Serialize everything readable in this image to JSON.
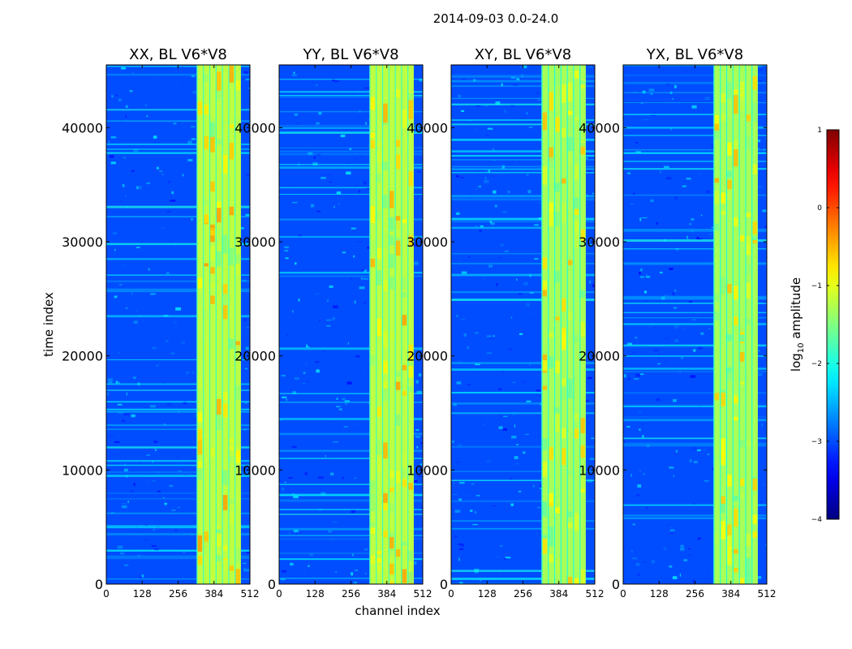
{
  "figure_title": "2014-09-03 0.0-24.0",
  "chart_data": {
    "type": "heatmap",
    "title": "2014-09-03 0.0-24.0",
    "xlabel": "channel index",
    "ylabel": "time index",
    "xlim": [
      0,
      512
    ],
    "ylim": [
      0,
      45500
    ],
    "xticks": [
      0,
      128,
      256,
      384,
      512
    ],
    "yticks": [
      0,
      10000,
      20000,
      30000,
      40000
    ],
    "xtick_labels": [
      "0",
      "128",
      "256",
      "384",
      "512"
    ],
    "ytick_labels": [
      "0",
      "10000",
      "20000",
      "30000",
      "40000"
    ],
    "panels": [
      {
        "title": "XX, BL V6*V8",
        "band_channels": [
          322,
          480
        ],
        "band_level": -1.2
      },
      {
        "title": "YY, BL V6*V8",
        "band_channels": [
          322,
          480
        ],
        "band_level": -1.2
      },
      {
        "title": "XY, BL V6*V8",
        "band_channels": [
          322,
          480
        ],
        "band_level": -1.3
      },
      {
        "title": "YX, BL V6*V8",
        "band_channels": [
          322,
          480
        ],
        "band_level": -1.3
      }
    ],
    "background_level": -3.0,
    "colorbar": {
      "label_prefix": "log",
      "label_sub": "10",
      "label_suffix": " amplitude",
      "range": [
        -4,
        1
      ],
      "ticks": [
        1,
        0,
        -1,
        -2,
        -3,
        -4
      ],
      "tick_labels": [
        "1",
        "0",
        "−1",
        "−2",
        "−3",
        "−4"
      ],
      "colormap": "jet"
    }
  }
}
